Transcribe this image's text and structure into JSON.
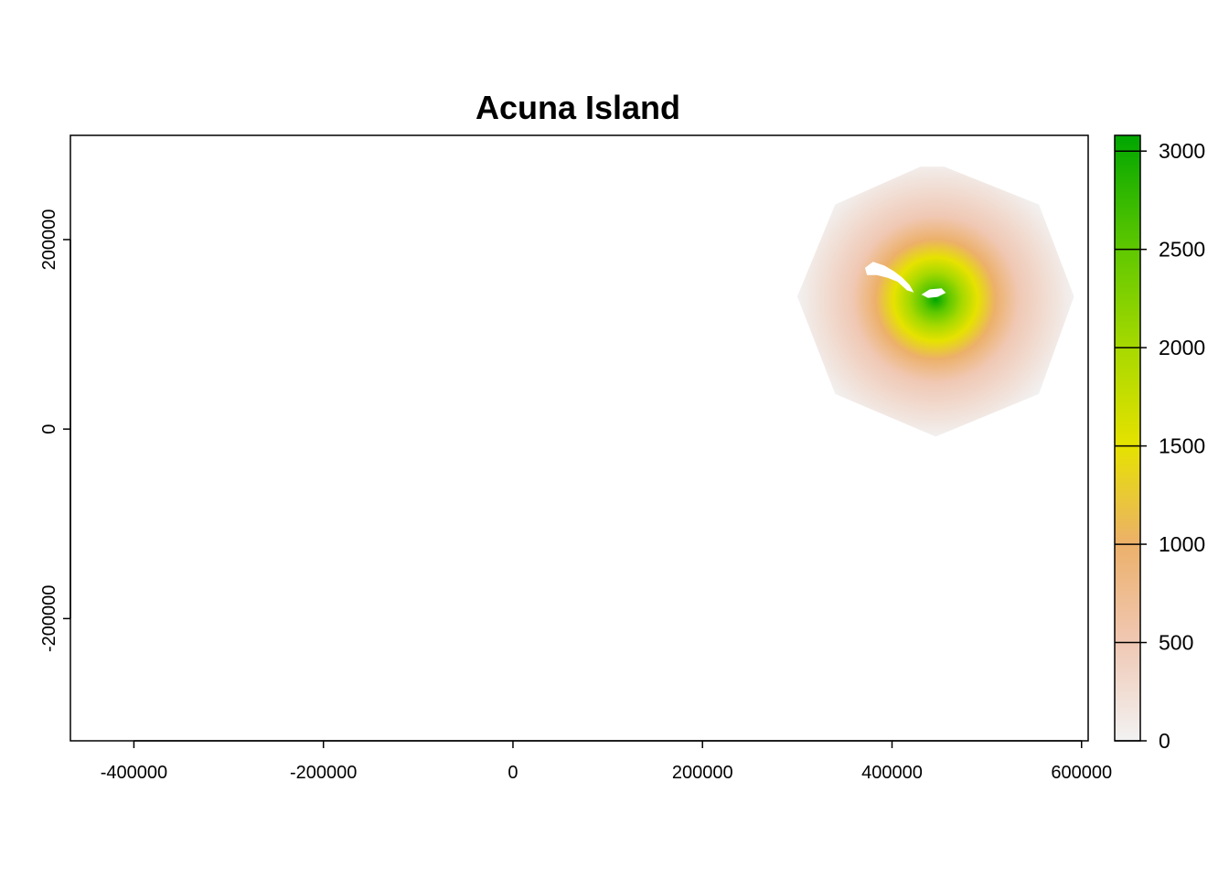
{
  "chart_data": {
    "type": "heatmap",
    "title": "Acuna Island",
    "xlabel": "",
    "ylabel": "",
    "xlim": [
      -467000,
      607000
    ],
    "ylim": [
      -329000,
      310000
    ],
    "x_ticks": [
      {
        "value": -400000,
        "label": "-400000"
      },
      {
        "value": -200000,
        "label": "-200000"
      },
      {
        "value": 0,
        "label": "0"
      },
      {
        "value": 200000,
        "label": "200000"
      },
      {
        "value": 400000,
        "label": "400000"
      },
      {
        "value": 600000,
        "label": "600000"
      }
    ],
    "y_ticks": [
      {
        "value": 200000,
        "label": "200000"
      },
      {
        "value": 0,
        "label": "0"
      },
      {
        "value": -200000,
        "label": "-200000"
      }
    ],
    "raster": {
      "peak_center": [
        446000,
        137000
      ],
      "peak_value": 3050,
      "extent_polygon": [
        [
          430000,
          277000
        ],
        [
          455000,
          277000
        ],
        [
          555000,
          237000
        ],
        [
          592000,
          140000
        ],
        [
          555000,
          37000
        ],
        [
          446000,
          -8000
        ],
        [
          340000,
          37000
        ],
        [
          300000,
          140000
        ],
        [
          340000,
          237000
        ]
      ]
    },
    "island_shapes": [
      [
        [
          372000,
          170000
        ],
        [
          380000,
          176000
        ],
        [
          392000,
          172000
        ],
        [
          402000,
          166000
        ],
        [
          410000,
          160000
        ],
        [
          418000,
          152000
        ],
        [
          422000,
          145000
        ],
        [
          416000,
          147000
        ],
        [
          406000,
          156000
        ],
        [
          396000,
          160000
        ],
        [
          384000,
          163000
        ],
        [
          374000,
          163000
        ]
      ],
      [
        [
          432000,
          142000
        ],
        [
          440000,
          147000
        ],
        [
          452000,
          148000
        ],
        [
          456000,
          144000
        ],
        [
          448000,
          140000
        ],
        [
          438000,
          139000
        ]
      ]
    ],
    "legend": {
      "position": "right",
      "min": 0,
      "max": 3080,
      "ticks": [
        {
          "value": 0,
          "label": "0"
        },
        {
          "value": 500,
          "label": "500"
        },
        {
          "value": 1000,
          "label": "1000"
        },
        {
          "value": 1500,
          "label": "1500"
        },
        {
          "value": 2000,
          "label": "2000"
        },
        {
          "value": 2500,
          "label": "2500"
        },
        {
          "value": 3000,
          "label": "3000"
        }
      ],
      "color_stops": [
        {
          "value": 0,
          "color": "#f2f2f2"
        },
        {
          "value": 500,
          "color": "#f0c8b4"
        },
        {
          "value": 1000,
          "color": "#ecb06a"
        },
        {
          "value": 1500,
          "color": "#e6e200"
        },
        {
          "value": 2000,
          "color": "#a7d900"
        },
        {
          "value": 2500,
          "color": "#5fc800"
        },
        {
          "value": 3080,
          "color": "#00a600"
        }
      ]
    }
  }
}
